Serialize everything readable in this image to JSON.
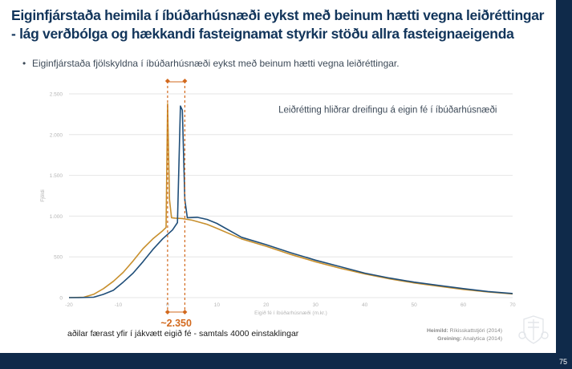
{
  "slide": {
    "title": "Eiginfjárstaða heimila í íbúðarhúsnæði eykst með beinum hætti vegna leiðréttingar - lág verðbólga og hækkandi fasteignamat styrkir stöðu allra fasteignaeigenda",
    "bullet_marker": "•",
    "bullet": "Eiginfjárstaða fjölskyldna í íbúðarhúsnæði eykst með beinum hætti vegna leiðréttingar.",
    "note_below": "aðilar færast yfir í jákvætt eigið fé - samtals 4000 einstaklingar",
    "source_label": "Heimild:",
    "source_value": "Ríkisskattstjóri (2014)",
    "analysis_label": "Greining:",
    "analysis_value": "Analytica (2014)",
    "page_number": "75",
    "colors": {
      "navy": "#0f2a4a",
      "title": "#12355b",
      "before_series": "#c8902e",
      "after_series": "#1f4e79",
      "marker": "#d2691e",
      "grid": "#e6e6e6"
    }
  },
  "chart_data": {
    "type": "line",
    "annotation": "Leiðrétting hliðrar dreifingu á eigin fé í íbúðarhúsnæði",
    "xlabel": "Eigið fé í íbúðarhúsnæði (m.kr.)",
    "ylabel": "Fjöldi",
    "xlim": [
      -20,
      70
    ],
    "ylim": [
      0,
      2500
    ],
    "x_ticks": [
      -20,
      -10,
      0,
      10,
      20,
      30,
      40,
      50,
      60,
      70
    ],
    "x_tick_labels": [
      "-20",
      "-10",
      "0",
      "10",
      "20",
      "30",
      "40",
      "50",
      "60",
      "70"
    ],
    "y_ticks": [
      0,
      500,
      1000,
      1500,
      2000,
      2500
    ],
    "y_tick_labels": [
      "0",
      "500",
      "1.000",
      "1.500",
      "2.000",
      "2.500"
    ],
    "grid": true,
    "series": [
      {
        "color": "#c8902e",
        "x": [
          -20,
          -17,
          -15,
          -13,
          -11,
          -9,
          -7,
          -5,
          -3,
          -1,
          -0.3,
          0,
          0.4,
          0.8,
          1.5,
          3,
          5,
          8,
          10,
          15,
          20,
          25,
          30,
          35,
          40,
          45,
          50,
          55,
          60,
          65,
          70
        ],
        "y": [
          0,
          5,
          40,
          110,
          200,
          310,
          450,
          600,
          720,
          820,
          860,
          2380,
          1200,
          980,
          975,
          970,
          950,
          900,
          850,
          720,
          630,
          530,
          440,
          360,
          290,
          230,
          180,
          140,
          100,
          70,
          45
        ]
      },
      {
        "color": "#1f4e79",
        "x": [
          -20,
          -18,
          -15,
          -13,
          -11,
          -9,
          -7,
          -5,
          -3,
          -1,
          1,
          2,
          2.6,
          3,
          3.5,
          4,
          6,
          8,
          10,
          15,
          20,
          25,
          30,
          35,
          40,
          45,
          50,
          55,
          60,
          65,
          70
        ],
        "y": [
          0,
          0,
          5,
          40,
          90,
          190,
          300,
          440,
          590,
          720,
          830,
          920,
          2350,
          2300,
          1200,
          980,
          985,
          960,
          910,
          740,
          650,
          550,
          460,
          380,
          300,
          240,
          190,
          150,
          110,
          75,
          50
        ]
      }
    ],
    "markers": {
      "x": [
        0,
        3.5
      ],
      "label": "~2.350"
    }
  }
}
